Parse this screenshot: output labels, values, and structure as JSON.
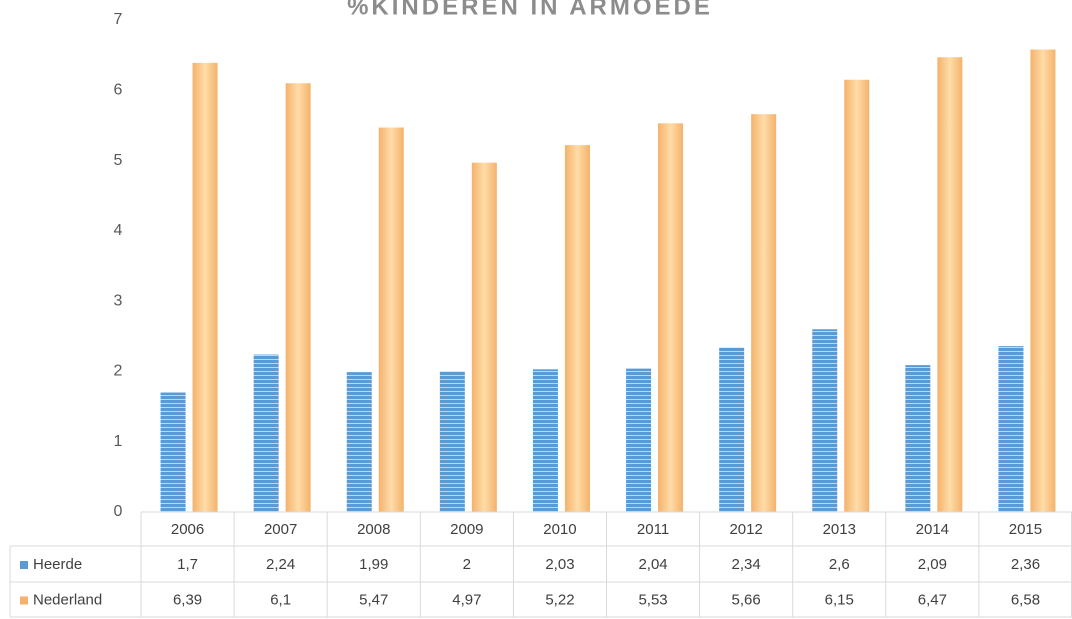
{
  "chart_data": {
    "type": "bar",
    "title": "%KINDEREN IN ARMOEDE",
    "categories": [
      "2006",
      "2007",
      "2008",
      "2009",
      "2010",
      "2011",
      "2012",
      "2013",
      "2014",
      "2015"
    ],
    "series": [
      {
        "name": "Heerde",
        "color": "#5b9bd5",
        "values": [
          1.7,
          2.24,
          1.99,
          2,
          2.03,
          2.04,
          2.34,
          2.6,
          2.09,
          2.36
        ],
        "value_labels": [
          "1,7",
          "2,24",
          "1,99",
          "2",
          "2,03",
          "2,04",
          "2,34",
          "2,6",
          "2,09",
          "2,36"
        ]
      },
      {
        "name": "Nederland",
        "color": "#f4b26b",
        "values": [
          6.39,
          6.1,
          5.47,
          4.97,
          5.22,
          5.53,
          5.66,
          6.15,
          6.47,
          6.58
        ],
        "value_labels": [
          "6,39",
          "6,1",
          "5,47",
          "4,97",
          "5,22",
          "5,53",
          "5,66",
          "6,15",
          "6,47",
          "6,58"
        ]
      }
    ],
    "ylim": [
      0,
      7
    ],
    "yticks": [
      0,
      1,
      2,
      3,
      4,
      5,
      6,
      7
    ],
    "grid": false
  }
}
